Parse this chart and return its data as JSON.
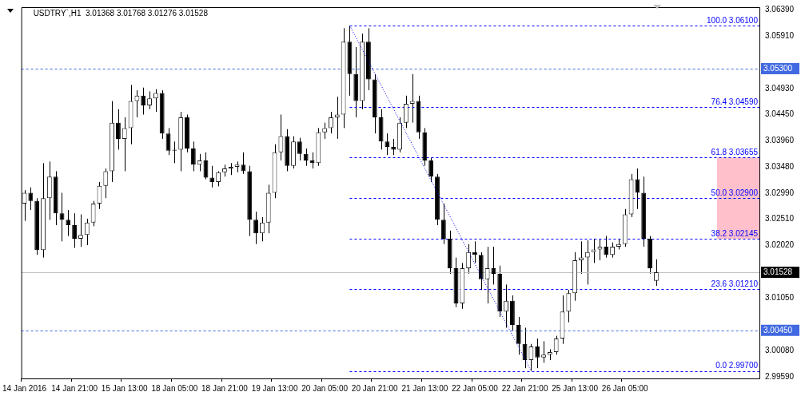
{
  "chart_data": {
    "type": "candlestick",
    "title": "USDTRY`,H1  3.01368 3.01768 3.01276 3.01528",
    "categories": [
      "14 Jan 2016",
      null,
      null,
      null,
      null,
      null,
      null,
      null,
      "14 Jan 21:00",
      null,
      null,
      null,
      null,
      null,
      null,
      null,
      "15 Jan 13:00",
      null,
      null,
      null,
      null,
      null,
      null,
      null,
      "18 Jan 05:00",
      null,
      null,
      null,
      null,
      null,
      null,
      null,
      "18 Jan 21:00",
      null,
      null,
      null,
      null,
      null,
      null,
      null,
      "19 Jan 13:00",
      null,
      null,
      null,
      null,
      null,
      null,
      null,
      "20 Jan 05:00",
      null,
      null,
      null,
      null,
      null,
      null,
      null,
      "20 Jan 21:00",
      null,
      null,
      null,
      null,
      null,
      null,
      null,
      "21 Jan 13:00",
      null,
      null,
      null,
      null,
      null,
      null,
      null,
      "22 Jan 05:00",
      null,
      null,
      null,
      null,
      null,
      null,
      null,
      "22 Jan 21:00",
      null,
      null,
      null,
      null,
      null,
      null,
      null,
      "25 Jan 13:00",
      null,
      null,
      null,
      null,
      null,
      null,
      null,
      "26 Jan 05:00",
      null,
      null,
      null,
      null,
      null,
      null,
      null,
      null,
      null,
      null,
      null,
      null,
      null,
      null,
      null,
      null,
      null,
      null,
      null,
      null,
      null
    ],
    "ohlc": [
      [
        3.028,
        3.0305,
        3.0248,
        3.03
      ],
      [
        3.03,
        3.031,
        3.0268,
        3.0285
      ],
      [
        3.0285,
        3.029,
        3.0185,
        3.0194
      ],
      [
        3.0194,
        3.0355,
        3.018,
        3.029
      ],
      [
        3.029,
        3.0358,
        3.025,
        3.033
      ],
      [
        3.033,
        3.034,
        3.024,
        3.0262
      ],
      [
        3.0262,
        3.03,
        3.021,
        3.025
      ],
      [
        3.025,
        3.0268,
        3.022,
        3.024
      ],
      [
        3.024,
        3.0262,
        3.0198,
        3.0215
      ],
      [
        3.0215,
        3.026,
        3.02,
        3.0222
      ],
      [
        3.0222,
        3.0252,
        3.0203,
        3.0245
      ],
      [
        3.0245,
        3.0285,
        3.0238,
        3.028
      ],
      [
        3.028,
        3.032,
        3.027,
        3.0313
      ],
      [
        3.0313,
        3.0345,
        3.029,
        3.034
      ],
      [
        3.034,
        3.047,
        3.032,
        3.043
      ],
      [
        3.043,
        3.0455,
        3.038,
        3.04
      ],
      [
        3.04,
        3.044,
        3.034,
        3.042
      ],
      [
        3.042,
        3.05,
        3.039,
        3.047
      ],
      [
        3.047,
        3.049,
        3.044,
        3.048
      ],
      [
        3.048,
        3.0495,
        3.0445,
        3.0462
      ],
      [
        3.0462,
        3.0488,
        3.0455,
        3.0475
      ],
      [
        3.0475,
        3.0492,
        3.045,
        3.0485
      ],
      [
        3.0485,
        3.049,
        3.04,
        3.041
      ],
      [
        3.041,
        3.042,
        3.037,
        3.0378
      ],
      [
        3.0378,
        3.0395,
        3.0355,
        3.038
      ],
      [
        3.038,
        3.045,
        3.034,
        3.044
      ],
      [
        3.044,
        3.0445,
        3.0375,
        3.0382
      ],
      [
        3.0382,
        3.0395,
        3.034,
        3.0352
      ],
      [
        3.0352,
        3.0372,
        3.034,
        3.036
      ],
      [
        3.036,
        3.0375,
        3.0325,
        3.0328
      ],
      [
        3.0328,
        3.035,
        3.031,
        3.032
      ],
      [
        3.032,
        3.034,
        3.0312,
        3.0338
      ],
      [
        3.0338,
        3.0352,
        3.033,
        3.0345
      ],
      [
        3.0345,
        3.0355,
        3.0333,
        3.0348
      ],
      [
        3.0348,
        3.0358,
        3.0338,
        3.0352
      ],
      [
        3.0352,
        3.0375,
        3.0335,
        3.034
      ],
      [
        3.034,
        3.035,
        3.022,
        3.025
      ],
      [
        3.025,
        3.0265,
        3.0205,
        3.0225
      ],
      [
        3.0225,
        3.0255,
        3.021,
        3.0245
      ],
      [
        3.0245,
        3.0315,
        3.0225,
        3.03
      ],
      [
        3.03,
        3.039,
        3.029,
        3.0375
      ],
      [
        3.0375,
        3.0445,
        3.036,
        3.0405
      ],
      [
        3.0405,
        3.0418,
        3.034,
        3.035
      ],
      [
        3.035,
        3.0405,
        3.0345,
        3.0395
      ],
      [
        3.0395,
        3.0402,
        3.036,
        3.0372
      ],
      [
        3.0372,
        3.0382,
        3.035,
        3.036
      ],
      [
        3.036,
        3.0375,
        3.0345,
        3.0355
      ],
      [
        3.0355,
        3.042,
        3.035,
        3.0412
      ],
      [
        3.0412,
        3.043,
        3.04,
        3.042
      ],
      [
        3.042,
        3.045,
        3.041,
        3.044
      ],
      [
        3.044,
        3.0478,
        3.04,
        3.0445
      ],
      [
        3.0445,
        3.0605,
        3.042,
        3.058
      ],
      [
        3.058,
        3.061,
        3.048,
        3.052
      ],
      [
        3.052,
        3.057,
        3.044,
        3.047
      ],
      [
        3.047,
        3.0595,
        3.0455,
        3.058
      ],
      [
        3.058,
        3.0605,
        3.049,
        3.051
      ],
      [
        3.051,
        3.052,
        3.041,
        3.044
      ],
      [
        3.044,
        3.0455,
        3.038,
        3.0395
      ],
      [
        3.0395,
        3.041,
        3.037,
        3.0385
      ],
      [
        3.0385,
        3.04,
        3.037,
        3.038
      ],
      [
        3.038,
        3.044,
        3.0375,
        3.043
      ],
      [
        3.043,
        3.048,
        3.042,
        3.0465
      ],
      [
        3.0465,
        3.052,
        3.043,
        3.047
      ],
      [
        3.047,
        3.048,
        3.04,
        3.0412
      ],
      [
        3.0412,
        3.042,
        3.035,
        3.036
      ],
      [
        3.036,
        3.0365,
        3.032,
        3.033
      ],
      [
        3.033,
        3.0335,
        3.024,
        3.025
      ],
      [
        3.025,
        3.028,
        3.0205,
        3.0215
      ],
      [
        3.0215,
        3.023,
        3.015,
        3.016
      ],
      [
        3.016,
        3.018,
        3.0088,
        3.0095
      ],
      [
        3.0095,
        3.017,
        3.0085,
        3.016
      ],
      [
        3.016,
        3.0205,
        3.015,
        3.019
      ],
      [
        3.019,
        3.021,
        3.017,
        3.0185
      ],
      [
        3.0185,
        3.019,
        3.012,
        3.014
      ],
      [
        3.014,
        3.02,
        3.0095,
        3.016
      ],
      [
        3.016,
        3.02,
        3.013,
        3.015
      ],
      [
        3.015,
        3.0165,
        3.007,
        3.008
      ],
      [
        3.008,
        3.013,
        3.005,
        3.01
      ],
      [
        3.01,
        3.011,
        3.0045,
        3.0055
      ],
      [
        3.0055,
        3.007,
        3.0,
        3.002
      ],
      [
        3.002,
        3.005,
        2.9975,
        2.999
      ],
      [
        2.999,
        3.002,
        2.997,
        3.0015
      ],
      [
        3.0015,
        3.003,
        2.9975,
        2.9995
      ],
      [
        2.9995,
        3.0025,
        2.9985,
        3.0
      ],
      [
        3.0,
        3.001,
        2.999,
        3.0005
      ],
      [
        3.0005,
        3.0035,
        3.0,
        3.003
      ],
      [
        3.003,
        3.011,
        3.002,
        3.008
      ],
      [
        3.008,
        3.012,
        3.006,
        3.0114
      ],
      [
        3.0114,
        3.019,
        3.01,
        3.0175
      ],
      [
        3.0175,
        3.021,
        3.015,
        3.018
      ],
      [
        3.018,
        3.0212,
        3.013,
        3.019
      ],
      [
        3.019,
        3.0215,
        3.017,
        3.0195
      ],
      [
        3.0195,
        3.0215,
        3.0175,
        3.02
      ],
      [
        3.02,
        3.022,
        3.018,
        3.0185
      ],
      [
        3.0185,
        3.0208,
        3.018,
        3.02
      ],
      [
        3.02,
        3.0215,
        3.0195,
        3.0205
      ],
      [
        3.0205,
        3.027,
        3.02,
        3.026
      ],
      [
        3.026,
        3.0335,
        3.0255,
        3.0325
      ],
      [
        3.0325,
        3.0345,
        3.027,
        3.03
      ],
      [
        3.03,
        3.033,
        3.02,
        3.0215
      ],
      [
        3.0215,
        3.022,
        3.015,
        3.016
      ],
      [
        3.01368,
        3.01768,
        3.01276,
        3.01528
      ],
      null,
      null,
      null,
      null,
      null,
      null,
      null,
      null,
      null,
      null,
      null,
      null,
      null,
      null,
      null,
      null
    ],
    "series": [
      {
        "type": "line",
        "color": "#0000ff",
        "line_style": "dotted",
        "values": [
          null,
          null,
          null,
          null,
          null,
          null,
          null,
          null,
          null,
          null,
          null,
          null,
          null,
          null,
          null,
          null,
          null,
          null,
          null,
          null,
          null,
          null,
          null,
          null,
          null,
          null,
          null,
          null,
          null,
          null,
          null,
          null,
          null,
          null,
          null,
          null,
          null,
          null,
          null,
          null,
          null,
          null,
          null,
          null,
          null,
          null,
          null,
          null,
          null,
          null,
          null,
          null,
          3.061,
          null,
          null,
          null,
          null,
          null,
          null,
          null,
          null,
          null,
          null,
          null,
          null,
          null,
          null,
          null,
          null,
          null,
          null,
          null,
          null,
          null,
          null,
          null,
          null,
          null,
          null,
          null,
          null,
          2.997,
          null,
          null,
          null,
          null,
          null,
          null,
          null,
          null,
          null,
          null,
          null,
          null,
          null,
          null,
          null,
          null,
          null,
          null,
          null,
          null,
          null,
          null,
          null,
          null,
          null,
          null,
          null,
          null,
          null,
          null,
          null,
          null,
          null,
          null,
          null,
          null
        ]
      }
    ],
    "ylim": [
      2.9956,
      3.0644
    ],
    "yticks": [
      {
        "value": 2.9959,
        "label": "2.99590"
      },
      {
        "value": 3.0008,
        "label": "3.00080"
      },
      {
        "value": 3.0105,
        "label": "3.01050"
      },
      {
        "value": 3.0202,
        "label": "3.02020"
      },
      {
        "value": 3.0251,
        "label": "3.02510"
      },
      {
        "value": 3.0299,
        "label": "3.02990"
      },
      {
        "value": 3.0348,
        "label": "3.03480"
      },
      {
        "value": 3.0396,
        "label": "3.03960"
      },
      {
        "value": 3.0445,
        "label": "3.04450"
      },
      {
        "value": 3.0493,
        "label": "3.04930"
      },
      {
        "value": 3.0591,
        "label": "3.05910"
      },
      {
        "value": 3.0639,
        "label": "3.06390"
      }
    ],
    "ref_lines": [
      {
        "axis": "y",
        "value": 3.061,
        "label": "100.0 3.06100",
        "color": "#0000ff",
        "line_style": "dashed"
      },
      {
        "axis": "y",
        "value": 3.0459,
        "label": "76.4 3.04590",
        "color": "#0000ff",
        "line_style": "dashed"
      },
      {
        "axis": "y",
        "value": 3.03655,
        "label": "61.8 3.03655",
        "color": "#0000ff",
        "line_style": "dashed"
      },
      {
        "axis": "y",
        "value": 3.029,
        "label": "50.0 3.02900",
        "color": "#0000ff",
        "line_style": "dashed"
      },
      {
        "axis": "y",
        "value": 3.02145,
        "label": "38.2 3.02145",
        "color": "#0000ff",
        "line_style": "dashed"
      },
      {
        "axis": "y",
        "value": 3.0121,
        "label": "23.6 3.01210",
        "color": "#0000ff",
        "line_style": "dashed"
      },
      {
        "axis": "y",
        "value": 2.997,
        "label": "0.0 2.99700",
        "color": "#0000ff",
        "line_style": "dashed"
      },
      {
        "axis": "y",
        "value": 3.053,
        "label": "3.05300",
        "color": "#4169e1",
        "line_style": "dashed"
      },
      {
        "axis": "y",
        "value": 3.0045,
        "label": "3.00450",
        "color": "#4169e1",
        "line_style": "dashed"
      },
      {
        "axis": "y",
        "value": 3.01528,
        "label": "3.01528",
        "color": "#c0c0c0",
        "line_style": "solid"
      }
    ],
    "bands": [
      {
        "axis": "y",
        "from": 3.02145,
        "to": 3.03655,
        "color": "#ffc0cb"
      }
    ],
    "grid": false,
    "legend": false
  }
}
